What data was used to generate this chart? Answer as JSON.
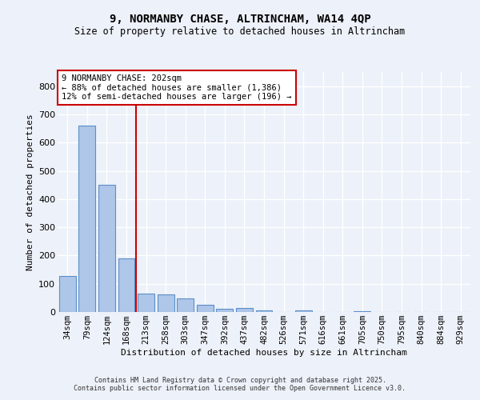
{
  "title_line1": "9, NORMANBY CHASE, ALTRINCHAM, WA14 4QP",
  "title_line2": "Size of property relative to detached houses in Altrincham",
  "xlabel": "Distribution of detached houses by size in Altrincham",
  "ylabel": "Number of detached properties",
  "categories": [
    "34sqm",
    "79sqm",
    "124sqm",
    "168sqm",
    "213sqm",
    "258sqm",
    "303sqm",
    "347sqm",
    "392sqm",
    "437sqm",
    "482sqm",
    "526sqm",
    "571sqm",
    "616sqm",
    "661sqm",
    "705sqm",
    "750sqm",
    "795sqm",
    "840sqm",
    "884sqm",
    "929sqm"
  ],
  "values": [
    128,
    660,
    450,
    190,
    65,
    63,
    47,
    25,
    12,
    13,
    7,
    0,
    5,
    0,
    0,
    4,
    0,
    0,
    0,
    0,
    0
  ],
  "bar_color": "#aec6e8",
  "bar_edge_color": "#5b8fc9",
  "vline_color": "#cc0000",
  "annotation_text": "9 NORMANBY CHASE: 202sqm\n← 88% of detached houses are smaller (1,386)\n12% of semi-detached houses are larger (196) →",
  "annotation_box_color": "#cc0000",
  "background_color": "#edf1f9",
  "grid_color": "#ffffff",
  "ylim": [
    0,
    850
  ],
  "yticks": [
    0,
    100,
    200,
    300,
    400,
    500,
    600,
    700,
    800
  ],
  "footer_line1": "Contains HM Land Registry data © Crown copyright and database right 2025.",
  "footer_line2": "Contains public sector information licensed under the Open Government Licence v3.0."
}
